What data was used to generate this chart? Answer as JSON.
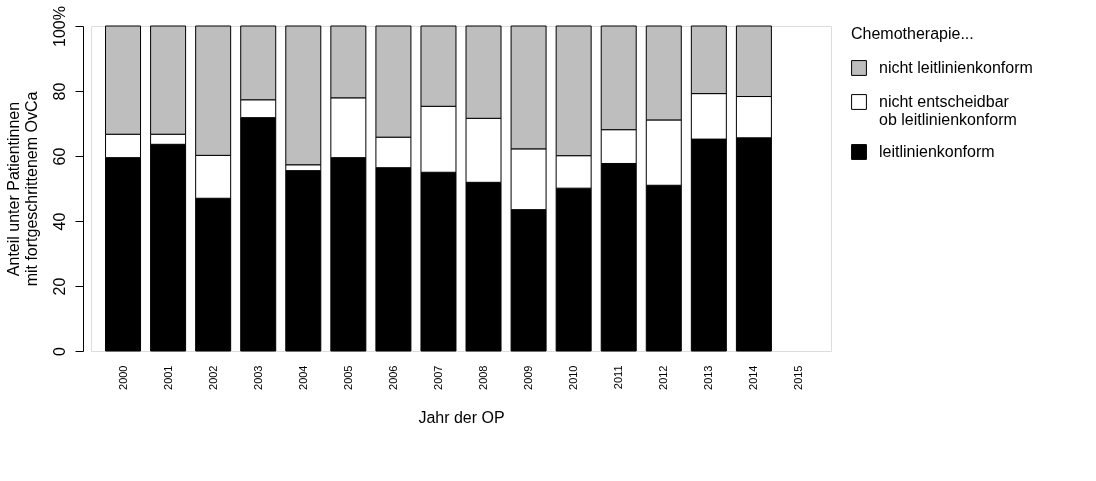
{
  "chart_data": {
    "type": "bar",
    "stacked": true,
    "xlabel": "Jahr der OP",
    "ylabel": "Anteil unter Patientinnen\nmit fortgeschrittenem OvCa",
    "legend_title": "Chemotherapie...",
    "categories": [
      "2000",
      "2001",
      "2002",
      "2003",
      "2004",
      "2005",
      "2006",
      "2007",
      "2008",
      "2009",
      "2010",
      "2011",
      "2012",
      "2013",
      "2014",
      "2015"
    ],
    "series": [
      {
        "name": "leitlinienkonform",
        "color": "#000000",
        "values": [
          59.5,
          63.6,
          47.0,
          71.8,
          55.5,
          59.5,
          56.4,
          55.0,
          51.9,
          43.5,
          50.1,
          57.7,
          51.0,
          65.2,
          65.6,
          null
        ]
      },
      {
        "name": "nicht entscheidbar\nob leitlinienkonform",
        "color": "#ffffff",
        "values": [
          7.2,
          3.1,
          13.2,
          5.5,
          1.8,
          18.4,
          9.4,
          20.3,
          19.7,
          18.7,
          10.0,
          10.4,
          20.1,
          14.0,
          12.7,
          null
        ]
      },
      {
        "name": "nicht leitlinienkonform",
        "color": "#bebebe",
        "values": [
          33.3,
          33.3,
          39.8,
          22.7,
          42.7,
          22.1,
          34.2,
          24.7,
          28.4,
          37.8,
          39.9,
          31.9,
          28.9,
          20.8,
          21.7,
          null
        ]
      }
    ],
    "ylim": [
      0,
      100
    ],
    "yticks": [
      0,
      20,
      40,
      60,
      80,
      {
        "value": 100,
        "label": "100%"
      }
    ],
    "grid": false,
    "legend": "right"
  }
}
